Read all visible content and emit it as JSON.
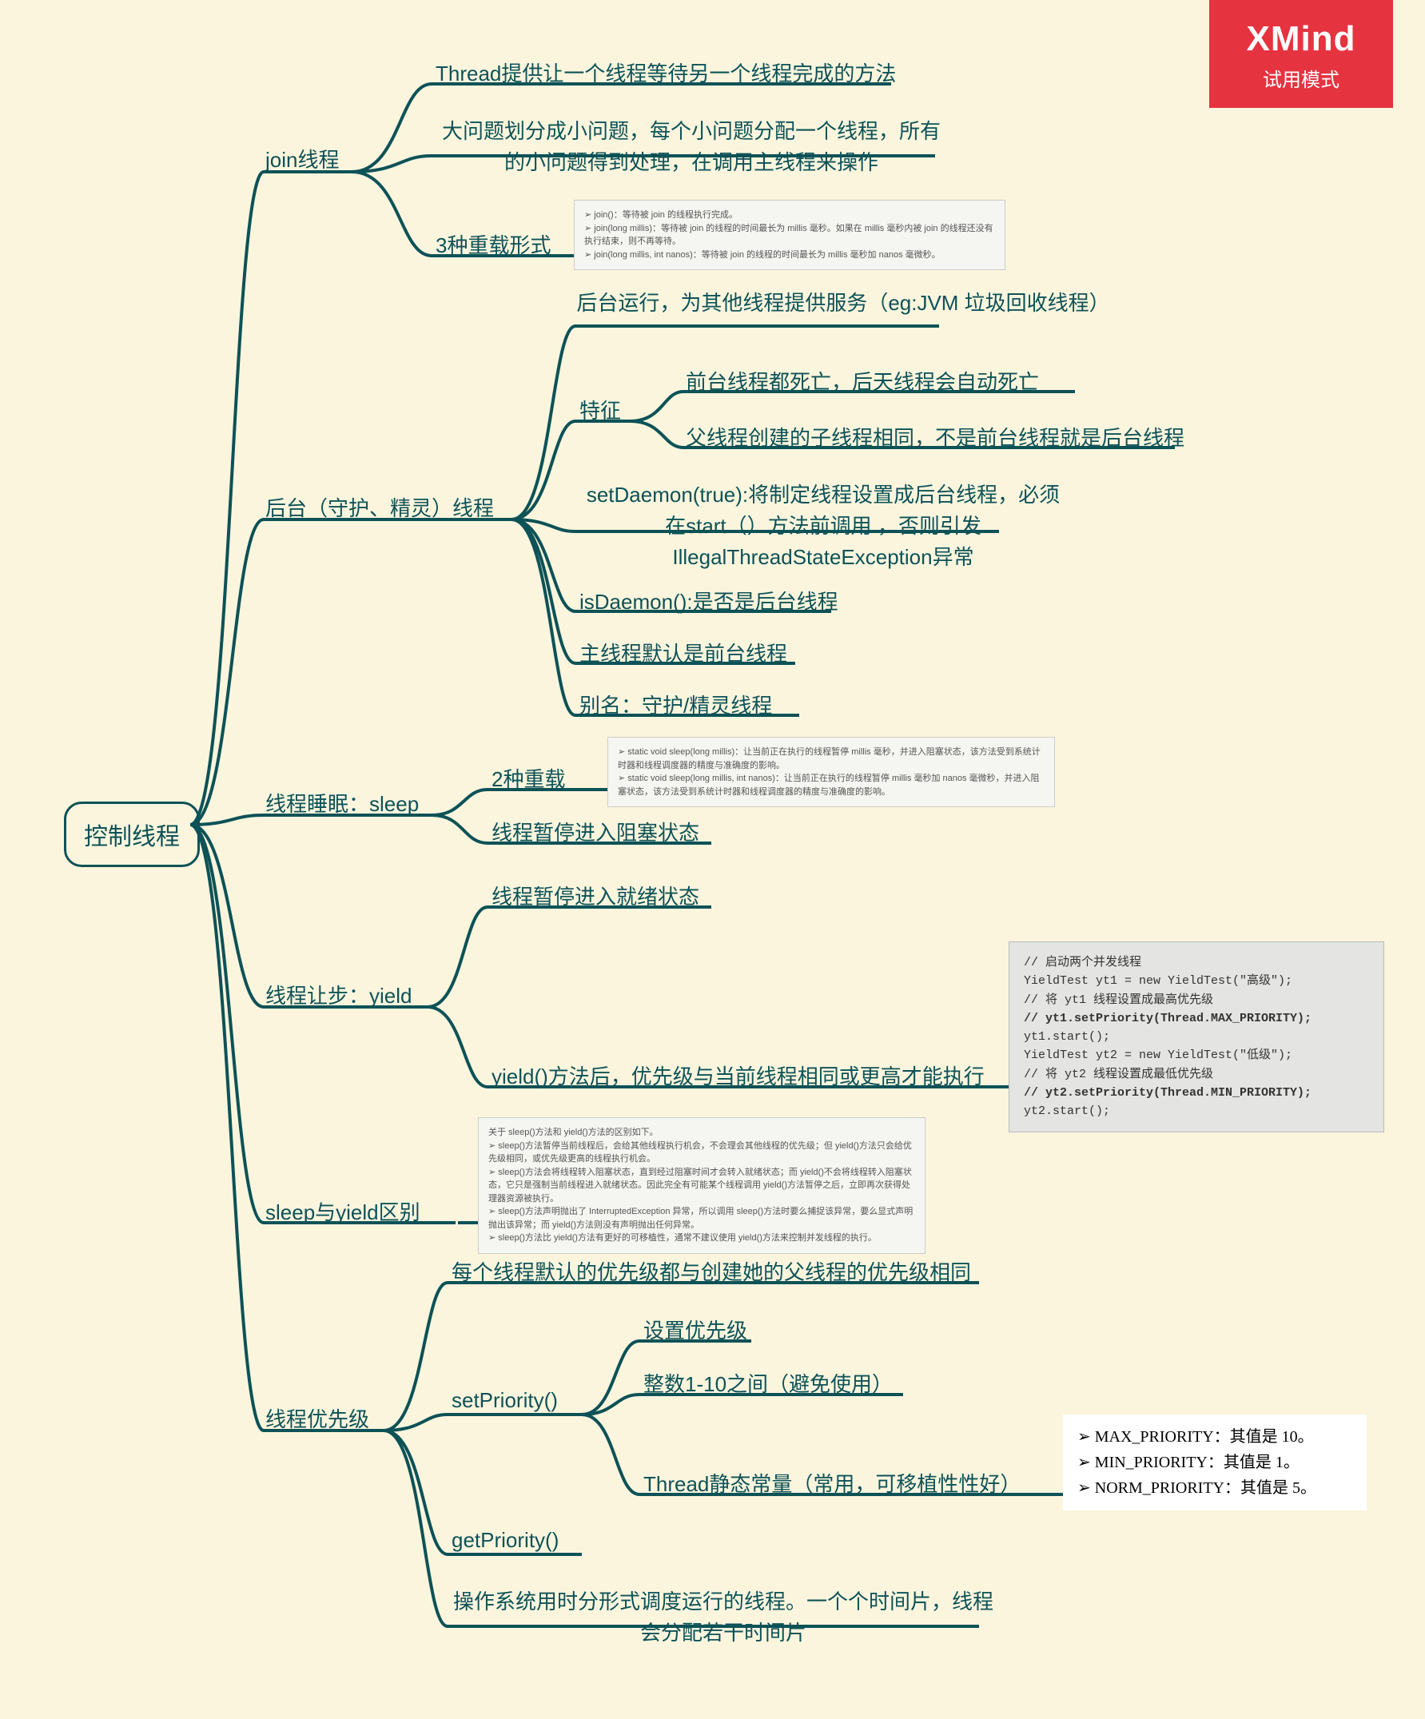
{
  "badge": {
    "brand": "XMind",
    "mode": "试用模式"
  },
  "root": "控制线程",
  "colors": {
    "bg": "#fbf5de",
    "line": "#0d5257",
    "badge": "#e53340"
  },
  "nodes": {
    "b1": "join线程",
    "b1c1": "Thread提供让一个线程等待另一个线程完成的方法",
    "b1c2": "大问题划分成小问题，每个小问题分配一个线程，所有的小问题得到处理，在调用主线程来操作",
    "b1c3": "3种重载形式",
    "img_join": "➢ join()：等待被 join 的线程执行完成。\n➢ join(long millis)：等待被 join 的线程的时间最长为 millis 毫秒。如果在 millis 毫秒内被 join 的线程还没有执行结束，则不再等待。\n➢ join(long millis, int nanos)：等待被 join 的线程的时间最长为 millis 毫秒加 nanos 毫微秒。",
    "b2": "后台（守护、精灵）线程",
    "b2c1": "后台运行，为其他线程提供服务（eg:JVM 垃圾回收线程）",
    "b2c2": "特征",
    "b2c2a": "前台线程都死亡，后天线程会自动死亡",
    "b2c2b": "父线程创建的子线程相同，不是前台线程就是后台线程",
    "b2c3": "setDaemon(true):将制定线程设置成后台线程，必须在start（）方法前调用 ，否则引发IllegalThreadStateException异常",
    "b2c4": "isDaemon():是否是后台线程",
    "b2c5": "主线程默认是前台线程",
    "b2c6": "别名：守护/精灵线程",
    "b3": "线程睡眠：sleep",
    "b3c1": "2种重载",
    "img_sleep": "➢ static void sleep(long millis)：让当前正在执行的线程暂停 millis 毫秒，并进入阻塞状态，该方法受到系统计时器和线程调度器的精度与准确度的影响。\n➢ static void sleep(long millis, int nanos)：让当前正在执行的线程暂停 millis 毫秒加 nanos 毫微秒，并进入阻塞状态，该方法受到系统计时器和线程调度器的精度与准确度的影响。",
    "b3c2": "线程暂停进入阻塞状态",
    "b4": "线程让步：yield",
    "b4c1": "线程暂停进入就绪状态",
    "code_yield": "// 启动两个并发线程\nYieldTest yt1 = new YieldTest(\"高级\");\n// 将 yt1 线程设置成最高优先级\n<b>// yt1.setPriority(Thread.MAX_PRIORITY);</b>\nyt1.start();\nYieldTest yt2 = new YieldTest(\"低级\");\n// 将 yt2 线程设置成最低优先级\n<b>// yt2.setPriority(Thread.MIN_PRIORITY);</b>\nyt2.start();",
    "b4c2": "yield()方法后，优先级与当前线程相同或更高才能执行",
    "b5": "sleep与yield区别",
    "img_diff": "关于 sleep()方法和 yield()方法的区别如下。\n➢ sleep()方法暂停当前线程后，会给其他线程执行机会，不会理会其他线程的优先级；但 yield()方法只会给优先级相同，或优先级更高的线程执行机会。\n➢ sleep()方法会将线程转入阻塞状态，直到经过阻塞时间才会转入就绪状态；而 yield()不会将线程转入阻塞状态，它只是强制当前线程进入就绪状态。因此完全有可能某个线程调用 yield()方法暂停之后，立即再次获得处理器资源被执行。\n➢ sleep()方法声明抛出了 InterruptedException 异常，所以调用 sleep()方法时要么捕捉该异常，要么显式声明抛出该异常；而 yield()方法则没有声明抛出任何异常。\n➢ sleep()方法比 yield()方法有更好的可移植性，通常不建议使用 yield()方法来控制并发线程的执行。",
    "b6": "线程优先级",
    "b6c1": "每个线程默认的优先级都与创建她的父线程的优先级相同",
    "b6c2": "setPriority()",
    "b6c2a": "设置优先级",
    "b6c2b": "整数1-10之间（避免使用）",
    "b6c2c": "Thread静态常量（常用，可移植性性好）",
    "prio_box": [
      "MAX_PRIORITY：其值是 10。",
      "MIN_PRIORITY：其值是 1。",
      "NORM_PRIORITY：其值是 5。"
    ],
    "b6c3": "getPriority()",
    "b6c4": "操作系统用时分形式调度运行的线程。一个个时间片，线程会分配若干时间片"
  }
}
